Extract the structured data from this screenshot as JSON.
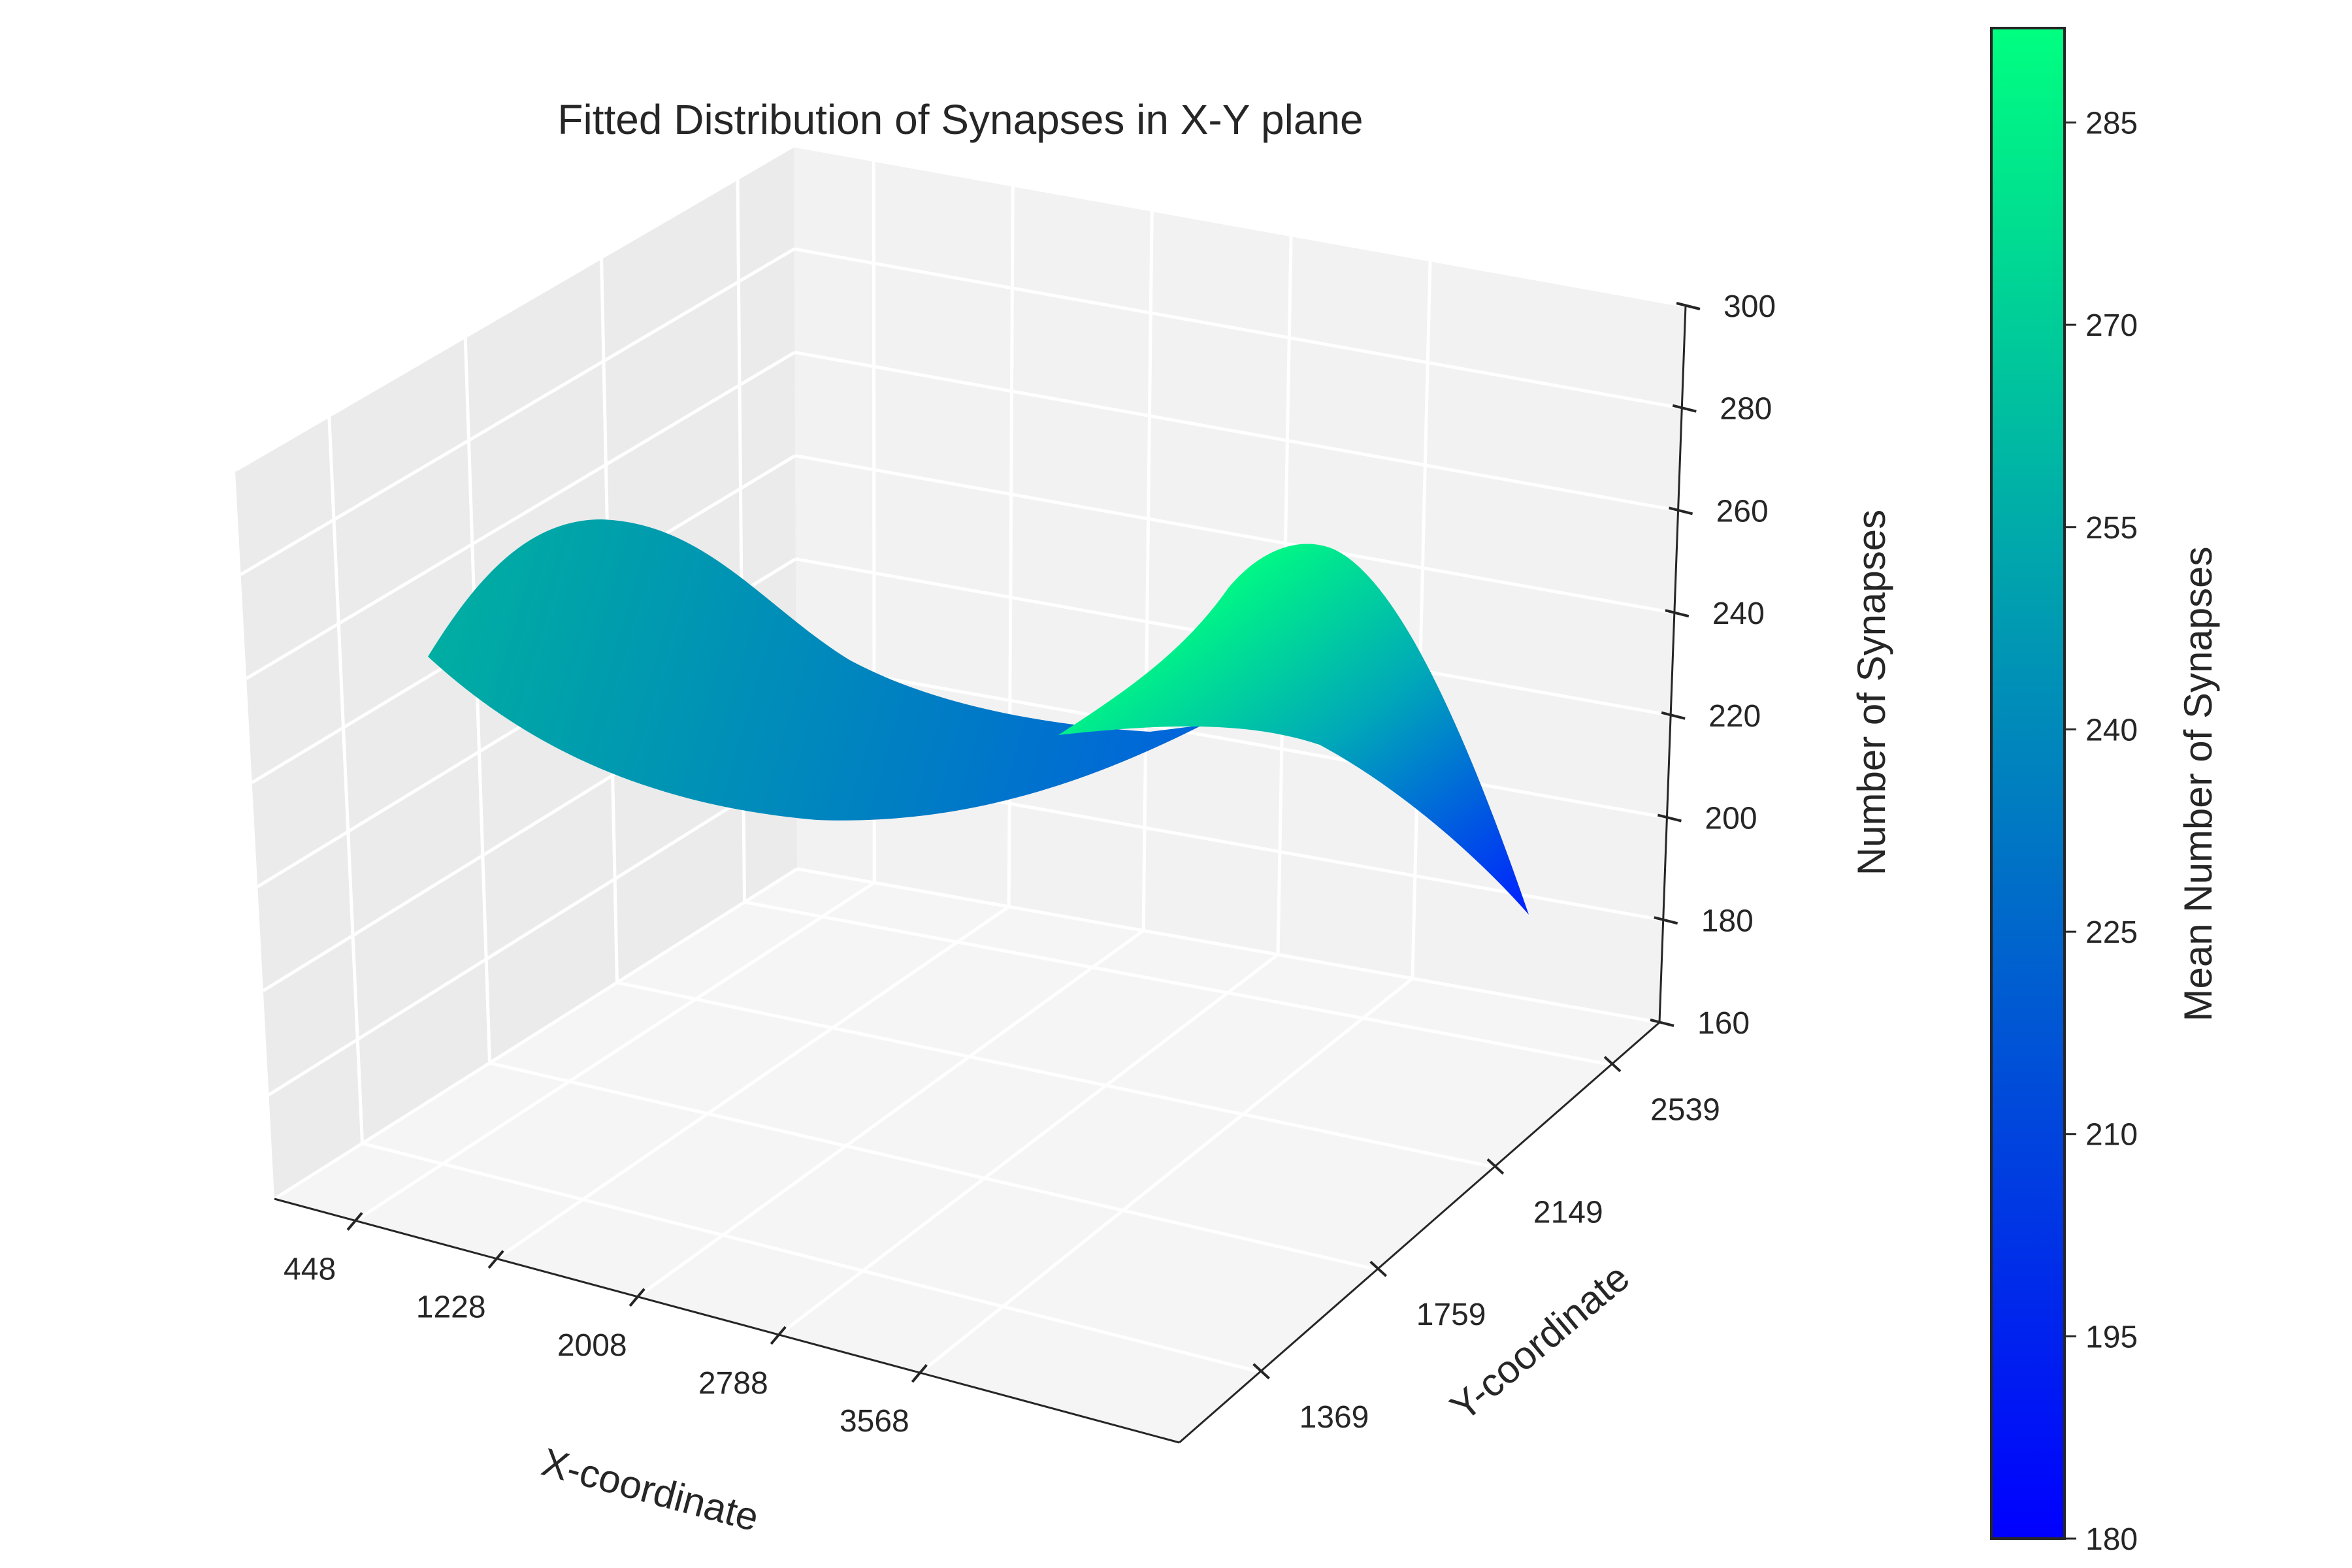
{
  "chart_data": {
    "type": "surface",
    "title": "Fitted Distribution of Synapses in X-Y plane",
    "xlabel": "X-coordinate",
    "ylabel": "Y-coordinate",
    "zlabel": "Number of Synapses",
    "xticks": [
      448,
      1228,
      2008,
      2788,
      3568
    ],
    "yticks": [
      1369,
      1759,
      2149,
      2539
    ],
    "zticks": [
      160,
      180,
      200,
      220,
      240,
      260,
      280,
      300
    ],
    "zlim": [
      160,
      300
    ],
    "colormap": "winter",
    "surface_profile": {
      "x": [
        448,
        838,
        1228,
        1618,
        2008,
        2398,
        2788,
        3178,
        3568
      ],
      "front_edge_z": [
        238,
        256,
        250,
        234,
        220,
        214,
        228,
        250,
        200
      ],
      "back_edge_z": [
        235,
        262,
        252,
        232,
        218,
        210,
        218,
        286,
        205
      ]
    },
    "colorbar": {
      "label": "Mean Number of Synapses",
      "ticks": [
        180,
        195,
        210,
        225,
        240,
        255,
        270,
        285
      ],
      "min": 180,
      "max": 292,
      "colors": [
        "#0000ff",
        "#00ff80"
      ]
    }
  }
}
